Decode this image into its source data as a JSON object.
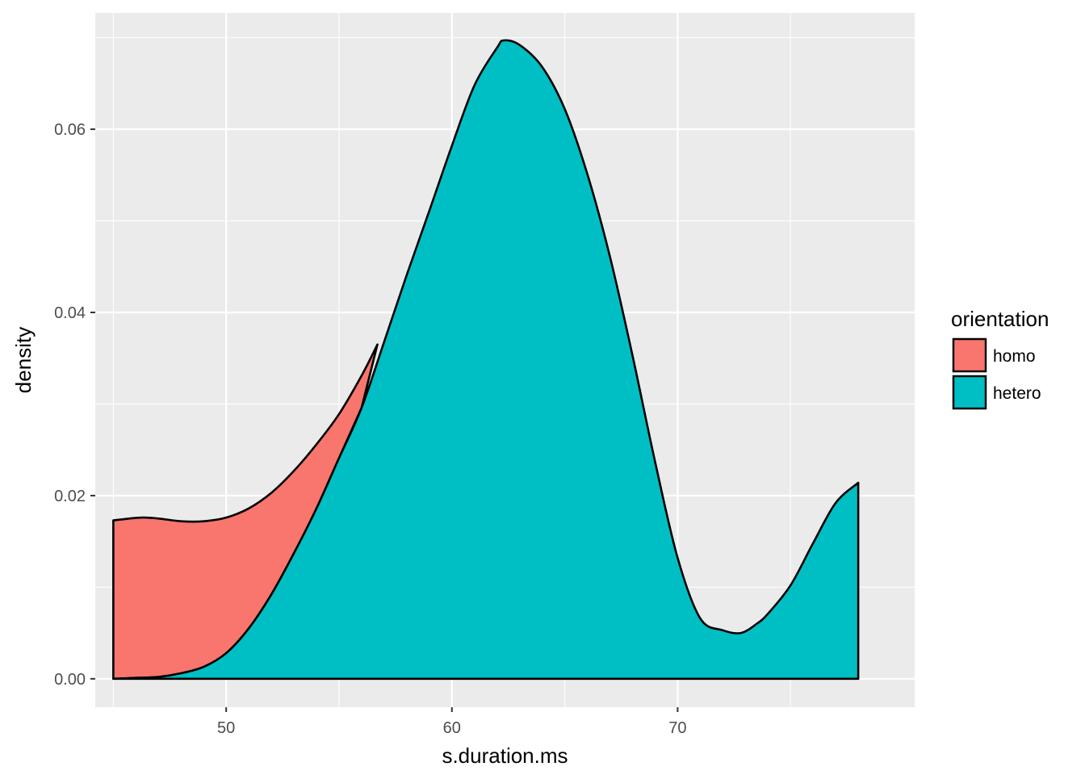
{
  "chart_data": {
    "type": "area",
    "subtype": "density",
    "title": "",
    "xlabel": "s.duration.ms",
    "ylabel": "density",
    "xlim": [
      44.2,
      80.5
    ],
    "ylim": [
      -0.0031,
      0.0727
    ],
    "x_ticks": [
      50,
      60,
      70
    ],
    "x_tick_labels": [
      "50",
      "60",
      "70"
    ],
    "x_minor_ticks": [
      45,
      55,
      65,
      75
    ],
    "y_ticks": [
      0.0,
      0.02,
      0.04,
      0.06
    ],
    "y_tick_labels": [
      "0.00",
      "0.02",
      "0.04",
      "0.06"
    ],
    "y_minor_ticks": [
      0.01,
      0.03,
      0.05,
      0.07
    ],
    "grid": true,
    "panel_background": "#ebebeb",
    "legend": {
      "title": "orientation",
      "position": "right",
      "entries": [
        {
          "label": "homo",
          "color": "#f8766d"
        },
        {
          "label": "hetero",
          "color": "#00bfc4"
        }
      ]
    },
    "series": [
      {
        "name": "homo",
        "color": "#f8766d",
        "x": [
          45.0,
          46.2,
          47.0,
          48.0,
          49.0,
          50.0,
          51.0,
          52.0,
          53.0,
          54.0,
          55.0,
          56.0,
          56.7
        ],
        "y": [
          0.0173,
          0.0176,
          0.0175,
          0.0172,
          0.0172,
          0.0176,
          0.0186,
          0.0203,
          0.0227,
          0.0256,
          0.0289,
          0.0331,
          0.0365
        ]
      },
      {
        "name": "hetero",
        "color": "#00bfc4",
        "x": [
          45.0,
          46.0,
          47.0,
          48.0,
          49.0,
          50.0,
          51.0,
          52.0,
          53.0,
          54.0,
          55.0,
          56.0,
          57.0,
          58.0,
          59.0,
          60.0,
          61.0,
          62.0,
          62.3,
          63.0,
          64.0,
          65.0,
          66.0,
          67.0,
          68.0,
          69.0,
          70.0,
          71.0,
          72.0,
          72.8,
          73.5,
          74.0,
          75.0,
          76.0,
          77.0,
          78.0
        ],
        "y": [
          0.0,
          0.0001,
          0.0002,
          0.0006,
          0.0013,
          0.0028,
          0.0055,
          0.0092,
          0.0137,
          0.0186,
          0.0241,
          0.0296,
          0.0368,
          0.0441,
          0.0511,
          0.0582,
          0.0648,
          0.0689,
          0.0697,
          0.0692,
          0.0668,
          0.0622,
          0.0551,
          0.0461,
          0.0353,
          0.0237,
          0.0132,
          0.0066,
          0.0053,
          0.005,
          0.006,
          0.0071,
          0.0102,
          0.0148,
          0.0192,
          0.0214
        ]
      }
    ]
  }
}
